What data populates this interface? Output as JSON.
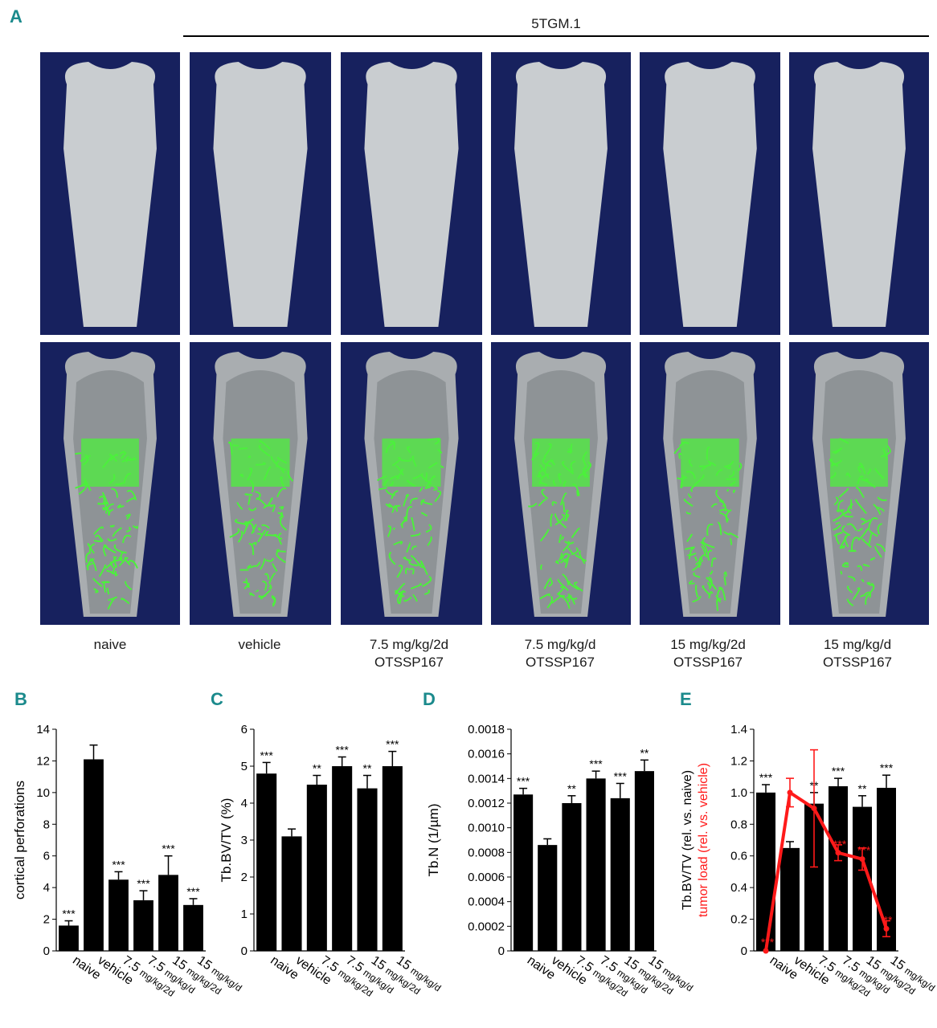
{
  "panel_letters": {
    "a": "A",
    "b": "B",
    "c": "C",
    "d": "D",
    "e": "E"
  },
  "group_label": "5TGM.1",
  "conditions": [
    {
      "line1": "naive",
      "line2": ""
    },
    {
      "line1": "vehicle",
      "line2": ""
    },
    {
      "line1": "7.5 mg/kg/2d",
      "line2": "OTSSP167"
    },
    {
      "line1": "7.5 mg/kg/d",
      "line2": "OTSSP167"
    },
    {
      "line1": "15 mg/kg/2d",
      "line2": "OTSSP167"
    },
    {
      "line1": "15 mg/kg/d",
      "line2": "OTSSP167"
    }
  ],
  "colors": {
    "panel_letter": "#1b8a8c",
    "tile_bg": "#17215e",
    "bone": "#c9cdd0",
    "trabecular": "#4cf03c",
    "bars": "#000000",
    "tumor": "#ff1a1a"
  },
  "chart_data": [
    {
      "type": "bar",
      "panel": "B",
      "ylabel": "cortical perforations",
      "ylim": [
        0,
        14
      ],
      "yticks": [
        "0",
        "2",
        "4",
        "6",
        "8",
        "10",
        "12",
        "14"
      ],
      "categories": [
        {
          "main": "naive",
          "sub": ""
        },
        {
          "main": "vehicle",
          "sub": ""
        },
        {
          "main": "7.5",
          "sub": "mg/kg/2d"
        },
        {
          "main": "7.5",
          "sub": "mg/kg/d"
        },
        {
          "main": "15",
          "sub": "mg/kg/2d"
        },
        {
          "main": "15",
          "sub": "mg/kg/d"
        }
      ],
      "values": [
        1.6,
        12.1,
        4.5,
        3.2,
        4.8,
        2.9
      ],
      "errors": [
        0.3,
        0.9,
        0.5,
        0.6,
        1.2,
        0.4
      ],
      "significance": [
        "***",
        "",
        "***",
        "***",
        "***",
        "***"
      ]
    },
    {
      "type": "bar",
      "panel": "C",
      "ylabel": "Tb.BV/TV (%)",
      "ylim": [
        0,
        6
      ],
      "yticks": [
        "0",
        "1",
        "2",
        "3",
        "4",
        "5",
        "6"
      ],
      "categories": [
        {
          "main": "naive",
          "sub": ""
        },
        {
          "main": "vehicle",
          "sub": ""
        },
        {
          "main": "7.5",
          "sub": "mg/kg/2d"
        },
        {
          "main": "7.5",
          "sub": "mg/kg/d"
        },
        {
          "main": "15",
          "sub": "mg/kg/2d"
        },
        {
          "main": "15",
          "sub": "mg/kg/d"
        }
      ],
      "values": [
        4.8,
        3.1,
        4.5,
        5.0,
        4.4,
        5.0
      ],
      "errors": [
        0.3,
        0.2,
        0.25,
        0.25,
        0.35,
        0.4
      ],
      "significance": [
        "***",
        "",
        "**",
        "***",
        "**",
        "***"
      ]
    },
    {
      "type": "bar",
      "panel": "D",
      "ylabel": "Tb.N (1/µm)",
      "ylim": [
        0,
        0.0018
      ],
      "yticks": [
        "0",
        "0.0002",
        "0.0004",
        "0.0006",
        "0.0008",
        "0.0010",
        "0.0012",
        "0.0014",
        "0.0016",
        "0.0018"
      ],
      "categories": [
        {
          "main": "naive",
          "sub": ""
        },
        {
          "main": "vehicle",
          "sub": ""
        },
        {
          "main": "7.5",
          "sub": "mg/kg/2d"
        },
        {
          "main": "7.5",
          "sub": "mg/kg/d"
        },
        {
          "main": "15",
          "sub": "mg/kg/2d"
        },
        {
          "main": "15",
          "sub": "mg/kg/d"
        }
      ],
      "values": [
        0.00127,
        0.00086,
        0.0012,
        0.0014,
        0.00124,
        0.00146
      ],
      "errors": [
        5e-05,
        5e-05,
        6e-05,
        6e-05,
        0.00012,
        9e-05
      ],
      "significance": [
        "***",
        "",
        "**",
        "***",
        "***",
        "**"
      ]
    },
    {
      "type": "bar",
      "panel": "E",
      "ylabel_black": "Tb.BV/TV (rel. vs. naive)",
      "ylabel_red": "tumor load (rel. vs. vehicle)",
      "ylim": [
        0,
        1.4
      ],
      "yticks": [
        "0",
        "0.2",
        "0.4",
        "0.6",
        "0.8",
        "1.0",
        "1.2",
        "1.4"
      ],
      "categories": [
        {
          "main": "naive",
          "sub": ""
        },
        {
          "main": "vehicle",
          "sub": ""
        },
        {
          "main": "7.5",
          "sub": "mg/kg/2d"
        },
        {
          "main": "7.5",
          "sub": "mg/kg/d"
        },
        {
          "main": "15",
          "sub": "mg/kg/2d"
        },
        {
          "main": "15",
          "sub": "mg/kg/d"
        }
      ],
      "values": [
        1.0,
        0.65,
        0.93,
        1.04,
        0.91,
        1.03
      ],
      "errors": [
        0.05,
        0.04,
        0.07,
        0.05,
        0.07,
        0.08
      ],
      "significance": [
        "***",
        "",
        "**",
        "***",
        "**",
        "***"
      ],
      "tumor_values": [
        0.0,
        1.0,
        0.9,
        0.62,
        0.58,
        0.14
      ],
      "tumor_errors": [
        0.0,
        0.09,
        0.37,
        0.05,
        0.07,
        0.05
      ],
      "tumor_significance": [
        "***",
        "",
        "",
        "***",
        "***",
        "**"
      ]
    }
  ]
}
